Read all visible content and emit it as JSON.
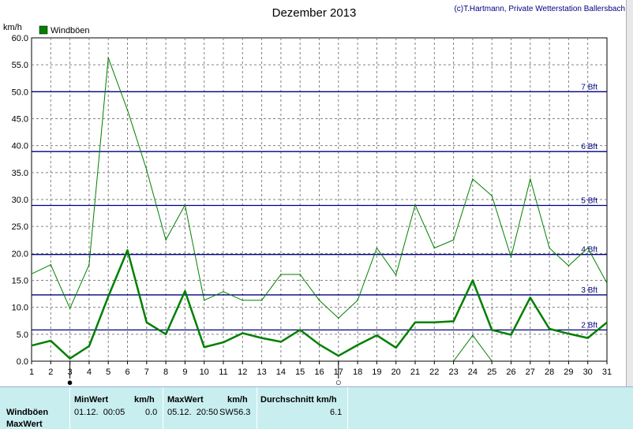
{
  "chart_data": {
    "type": "line",
    "title": "Dezember 2013",
    "credit": "(c)T.Hartmann, Private Wetterstation Ballersbach",
    "ylabel": "km/h",
    "ylim": [
      0,
      60
    ],
    "ytick_labels": [
      "0.0",
      "5.0",
      "10.0",
      "15.0",
      "20.0",
      "25.0",
      "30.0",
      "35.0",
      "40.0",
      "45.0",
      "50.0",
      "55.0",
      "60.0"
    ],
    "x": [
      1,
      2,
      3,
      4,
      5,
      6,
      7,
      8,
      9,
      10,
      11,
      12,
      13,
      14,
      15,
      16,
      17,
      18,
      19,
      20,
      21,
      22,
      23,
      24,
      25,
      26,
      27,
      28,
      29,
      30,
      31
    ],
    "xlim": [
      1,
      31
    ],
    "legend": "Windböen",
    "series": [
      {
        "name": "Windböen",
        "values": [
          2.9,
          3.8,
          0.5,
          2.8,
          12.0,
          20.6,
          7.2,
          5.0,
          13.0,
          2.6,
          3.5,
          5.2,
          4.3,
          3.6,
          5.8,
          3.1,
          1.0,
          3.0,
          4.8,
          2.5,
          7.2,
          7.2,
          7.4,
          15.0,
          5.8,
          4.9,
          11.8,
          6.0,
          5.1,
          4.3,
          7.2
        ]
      },
      {
        "values": [
          16.2,
          17.9,
          9.8,
          17.9,
          56.3,
          46.6,
          35.5,
          22.5,
          29.0,
          11.3,
          12.9,
          11.3,
          11.3,
          16.1,
          16.1,
          11.3,
          8.0,
          11.3,
          21.0,
          16.0,
          29.0,
          21.0,
          22.5,
          33.8,
          30.7,
          19.3,
          33.8,
          21.0,
          17.7,
          21.0,
          14.5
        ]
      },
      {
        "values": [
          null,
          null,
          null,
          null,
          null,
          null,
          null,
          null,
          null,
          null,
          null,
          null,
          null,
          null,
          null,
          null,
          null,
          null,
          null,
          null,
          null,
          null,
          0.0,
          4.8,
          0.0,
          null,
          null,
          null,
          null,
          null,
          null
        ]
      }
    ],
    "reference_lines": [
      {
        "label": "2 Bft",
        "value": 5.8
      },
      {
        "label": "3 Bft",
        "value": 12.3
      },
      {
        "label": "4 Bft",
        "value": 19.8
      },
      {
        "label": "5 Bft",
        "value": 28.9
      },
      {
        "label": "6 Bft",
        "value": 38.9
      },
      {
        "label": "7 Bft",
        "value": 50.0
      }
    ],
    "moon_markers": [
      {
        "day": 3,
        "symbol": "●"
      },
      {
        "day": 17,
        "symbol": "○"
      }
    ],
    "grid": true,
    "legend_position": "top-left"
  },
  "stats": {
    "row_label_1": "Windböen",
    "row_label_2": "MaxWert",
    "min_header": "MinWert",
    "min_unit": "km/h",
    "min_time": "01.12.  00:05",
    "min_value": "0.0",
    "max_header": "MaxWert",
    "max_unit": "km/h",
    "max_time": "05.12.  20:50",
    "max_dir": "SW",
    "max_value": "56.3",
    "avg_header": "Durchschnitt km/h",
    "avg_value": "6.1"
  },
  "colors": {
    "series": "#008000",
    "reference_lines": "#000080",
    "grid": "#808080",
    "panel": "#c9eef0"
  }
}
